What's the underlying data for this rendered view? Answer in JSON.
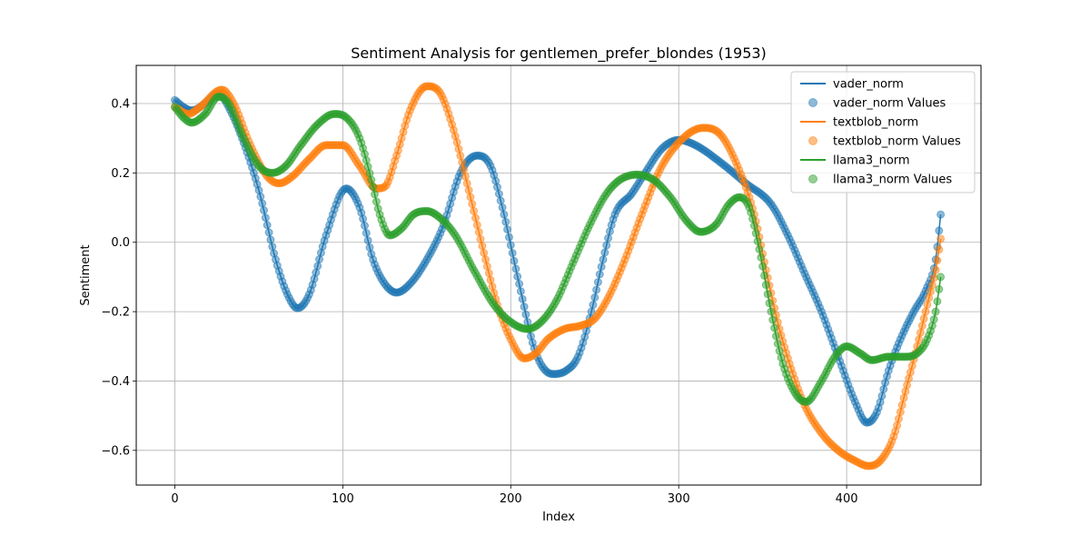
{
  "chart_data": {
    "type": "line",
    "title": "Sentiment Analysis for gentlemen_prefer_blondes (1953)",
    "xlabel": "Index",
    "ylabel": "Sentiment",
    "xlim": [
      -23,
      480
    ],
    "ylim": [
      -0.7,
      0.51
    ],
    "xticks": [
      0,
      100,
      200,
      300,
      400
    ],
    "yticks": [
      -0.6,
      -0.4,
      -0.2,
      0.0,
      0.2,
      0.4
    ],
    "xtick_labels": [
      "0",
      "100",
      "200",
      "300",
      "400"
    ],
    "ytick_labels": [
      "−0.6",
      "−0.4",
      "−0.2",
      "0.0",
      "0.2",
      "0.4"
    ],
    "grid": true,
    "legend_position": "top-right",
    "n_points": 457,
    "series": [
      {
        "name": "vader_norm",
        "values_label": "vader_norm Values",
        "color": "#1f77b4",
        "keypoints": [
          [
            0,
            0.41
          ],
          [
            5,
            0.39
          ],
          [
            10,
            0.38
          ],
          [
            18,
            0.4
          ],
          [
            26,
            0.43
          ],
          [
            32,
            0.39
          ],
          [
            40,
            0.3
          ],
          [
            50,
            0.15
          ],
          [
            60,
            -0.05
          ],
          [
            67,
            -0.15
          ],
          [
            73,
            -0.19
          ],
          [
            80,
            -0.15
          ],
          [
            90,
            0.02
          ],
          [
            102,
            0.155
          ],
          [
            110,
            0.1
          ],
          [
            118,
            -0.05
          ],
          [
            125,
            -0.12
          ],
          [
            132,
            -0.145
          ],
          [
            140,
            -0.12
          ],
          [
            150,
            -0.05
          ],
          [
            160,
            0.05
          ],
          [
            170,
            0.2
          ],
          [
            180,
            0.25
          ],
          [
            188,
            0.22
          ],
          [
            195,
            0.1
          ],
          [
            205,
            -0.12
          ],
          [
            215,
            -0.32
          ],
          [
            225,
            -0.38
          ],
          [
            233,
            -0.37
          ],
          [
            240,
            -0.33
          ],
          [
            248,
            -0.2
          ],
          [
            255,
            -0.05
          ],
          [
            262,
            0.08
          ],
          [
            272,
            0.14
          ],
          [
            280,
            0.2
          ],
          [
            290,
            0.27
          ],
          [
            300,
            0.295
          ],
          [
            310,
            0.28
          ],
          [
            325,
            0.23
          ],
          [
            340,
            0.17
          ],
          [
            355,
            0.11
          ],
          [
            365,
            0.02
          ],
          [
            375,
            -0.09
          ],
          [
            385,
            -0.2
          ],
          [
            395,
            -0.33
          ],
          [
            405,
            -0.46
          ],
          [
            412,
            -0.52
          ],
          [
            418,
            -0.49
          ],
          [
            425,
            -0.37
          ],
          [
            432,
            -0.28
          ],
          [
            440,
            -0.2
          ],
          [
            447,
            -0.14
          ],
          [
            453,
            -0.05
          ],
          [
            456,
            0.08
          ]
        ]
      },
      {
        "name": "textblob_norm",
        "values_label": "textblob_norm Values",
        "color": "#ff7f0e",
        "keypoints": [
          [
            0,
            0.39
          ],
          [
            8,
            0.37
          ],
          [
            15,
            0.39
          ],
          [
            28,
            0.44
          ],
          [
            35,
            0.4
          ],
          [
            45,
            0.28
          ],
          [
            55,
            0.19
          ],
          [
            62,
            0.17
          ],
          [
            70,
            0.19
          ],
          [
            80,
            0.24
          ],
          [
            90,
            0.28
          ],
          [
            100,
            0.28
          ],
          [
            110,
            0.22
          ],
          [
            120,
            0.155
          ],
          [
            125,
            0.16
          ],
          [
            132,
            0.25
          ],
          [
            140,
            0.38
          ],
          [
            150,
            0.45
          ],
          [
            158,
            0.43
          ],
          [
            165,
            0.34
          ],
          [
            175,
            0.15
          ],
          [
            185,
            -0.05
          ],
          [
            192,
            -0.18
          ],
          [
            200,
            -0.28
          ],
          [
            208,
            -0.335
          ],
          [
            215,
            -0.32
          ],
          [
            222,
            -0.28
          ],
          [
            232,
            -0.25
          ],
          [
            242,
            -0.24
          ],
          [
            250,
            -0.22
          ],
          [
            258,
            -0.16
          ],
          [
            268,
            -0.05
          ],
          [
            278,
            0.08
          ],
          [
            290,
            0.22
          ],
          [
            305,
            0.31
          ],
          [
            315,
            0.33
          ],
          [
            325,
            0.31
          ],
          [
            335,
            0.22
          ],
          [
            345,
            0.08
          ],
          [
            352,
            -0.08
          ],
          [
            360,
            -0.25
          ],
          [
            368,
            -0.38
          ],
          [
            375,
            -0.47
          ],
          [
            385,
            -0.55
          ],
          [
            395,
            -0.6
          ],
          [
            405,
            -0.63
          ],
          [
            413,
            -0.645
          ],
          [
            420,
            -0.63
          ],
          [
            428,
            -0.56
          ],
          [
            435,
            -0.43
          ],
          [
            442,
            -0.3
          ],
          [
            448,
            -0.18
          ],
          [
            453,
            -0.08
          ],
          [
            456,
            0.01
          ]
        ]
      },
      {
        "name": "llama3_norm",
        "values_label": "llama3_norm Values",
        "color": "#2ca02c",
        "keypoints": [
          [
            0,
            0.39
          ],
          [
            5,
            0.36
          ],
          [
            10,
            0.345
          ],
          [
            18,
            0.37
          ],
          [
            26,
            0.42
          ],
          [
            32,
            0.4
          ],
          [
            40,
            0.31
          ],
          [
            50,
            0.22
          ],
          [
            58,
            0.2
          ],
          [
            66,
            0.22
          ],
          [
            75,
            0.28
          ],
          [
            85,
            0.34
          ],
          [
            95,
            0.37
          ],
          [
            102,
            0.36
          ],
          [
            110,
            0.3
          ],
          [
            117,
            0.18
          ],
          [
            122,
            0.08
          ],
          [
            128,
            0.02
          ],
          [
            135,
            0.04
          ],
          [
            142,
            0.08
          ],
          [
            150,
            0.09
          ],
          [
            158,
            0.07
          ],
          [
            167,
            0.02
          ],
          [
            178,
            -0.08
          ],
          [
            190,
            -0.18
          ],
          [
            200,
            -0.23
          ],
          [
            210,
            -0.25
          ],
          [
            218,
            -0.23
          ],
          [
            227,
            -0.17
          ],
          [
            237,
            -0.06
          ],
          [
            247,
            0.05
          ],
          [
            257,
            0.14
          ],
          [
            265,
            0.18
          ],
          [
            275,
            0.195
          ],
          [
            285,
            0.18
          ],
          [
            295,
            0.13
          ],
          [
            305,
            0.06
          ],
          [
            313,
            0.03
          ],
          [
            322,
            0.05
          ],
          [
            330,
            0.11
          ],
          [
            336,
            0.13
          ],
          [
            342,
            0.1
          ],
          [
            348,
            -0.02
          ],
          [
            355,
            -0.2
          ],
          [
            362,
            -0.35
          ],
          [
            370,
            -0.44
          ],
          [
            376,
            -0.46
          ],
          [
            385,
            -0.4
          ],
          [
            393,
            -0.33
          ],
          [
            400,
            -0.3
          ],
          [
            408,
            -0.32
          ],
          [
            415,
            -0.34
          ],
          [
            425,
            -0.33
          ],
          [
            435,
            -0.33
          ],
          [
            442,
            -0.32
          ],
          [
            448,
            -0.28
          ],
          [
            453,
            -0.2
          ],
          [
            456,
            -0.1
          ]
        ]
      }
    ]
  }
}
